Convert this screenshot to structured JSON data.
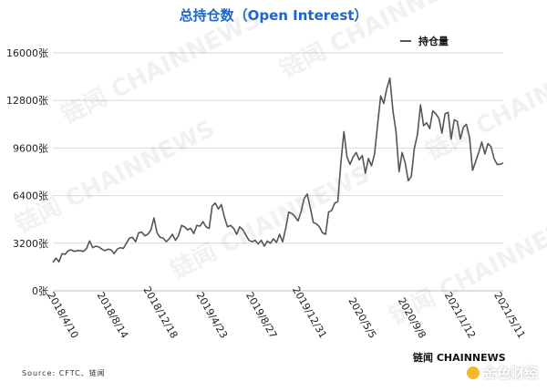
{
  "chart_data": {
    "type": "line",
    "title": "总持仓数（Open Interest）",
    "xlabel": "",
    "ylabel": "",
    "ylim": [
      0,
      16000
    ],
    "y_ticks": [
      "0张",
      "3200张",
      "6400张",
      "9600张",
      "12800张",
      "16000张"
    ],
    "y_tick_values": [
      0,
      3200,
      6400,
      9600,
      12800,
      16000
    ],
    "x_tick_labels": [
      "2018/4/10",
      "2018/8/14",
      "2018/12/18",
      "2019/4/23",
      "2019/8/27",
      "2019/12/31",
      "2020/5/5",
      "2020/9/8",
      "2021/1/12",
      "2021/5/11"
    ],
    "grid": true,
    "legend_position": "top-right",
    "series": [
      {
        "name": "持仓量",
        "color": "#555555",
        "values": [
          1900,
          2200,
          1950,
          2500,
          2450,
          2700,
          2750,
          2650,
          2700,
          2700,
          2650,
          2850,
          3350,
          2900,
          3000,
          2950,
          2800,
          2700,
          2800,
          2750,
          2500,
          2800,
          2900,
          2850,
          3200,
          3550,
          3600,
          3300,
          3900,
          3950,
          3700,
          3800,
          4100,
          4900,
          3900,
          3600,
          3550,
          3300,
          3500,
          3800,
          3400,
          3700,
          4400,
          4300,
          4100,
          4200,
          3850,
          4400,
          4350,
          4650,
          4300,
          4200,
          5700,
          5900,
          5500,
          5800,
          4950,
          4300,
          4400,
          4200,
          3800,
          4300,
          4100,
          3750,
          3400,
          3300,
          3400,
          3150,
          3400,
          3000,
          3350,
          3200,
          3500,
          3250,
          3800,
          3300,
          4200,
          5300,
          5200,
          5000,
          4700,
          5300,
          6200,
          6500,
          5600,
          4600,
          4500,
          4300,
          3900,
          3800,
          5300,
          5400,
          5900,
          6000,
          8600,
          10700,
          9000,
          8500,
          9000,
          9300,
          8800,
          9100,
          7900,
          8900,
          8400,
          9200,
          11200,
          13100,
          12600,
          13600,
          14300,
          12100,
          10700,
          8000,
          9300,
          8600,
          7400,
          7700,
          9600,
          10500,
          12500,
          11100,
          11300,
          10900,
          12100,
          11900,
          11600,
          10600,
          11900,
          12000,
          10200,
          11500,
          11400,
          10200,
          11000,
          11200,
          10300,
          8100,
          8700,
          9300,
          10000,
          9200,
          9900,
          9700,
          8900,
          8500,
          8500,
          8600
        ]
      }
    ]
  },
  "source_text": "Source: CFTC、链闻",
  "brand_text": "链闻 CHAINNEWS",
  "watermark_text": "链闻 CHAINNEWS",
  "corner_logo_text": "金色财经"
}
